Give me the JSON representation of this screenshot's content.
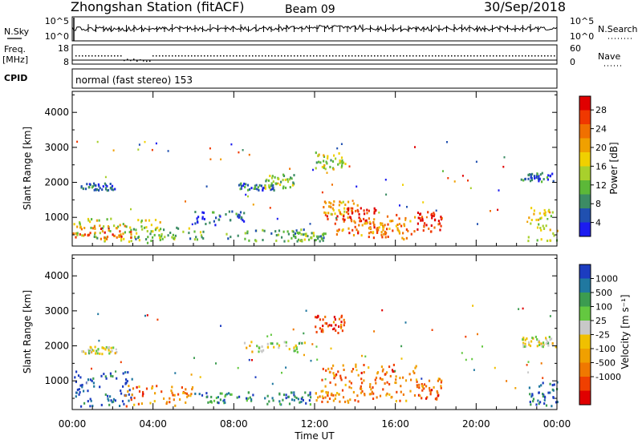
{
  "header": {
    "station": "Zhongshan Station (fitACF)",
    "beam": "Beam 09",
    "date": "30/Sep/2018"
  },
  "nsky_panel": {
    "left_label": "N.Sky",
    "right_label": "N.Search",
    "left_ticks": [
      "10^5",
      "10^0"
    ],
    "right_ticks": [
      "10^5",
      "10^0"
    ]
  },
  "freq_panel": {
    "left_label_line1": "Freq.",
    "left_label_line2": "[MHz]",
    "right_label": "Nave",
    "left_ticks": [
      "18",
      "8"
    ],
    "right_ticks": [
      "60",
      "0"
    ]
  },
  "cpid_panel": {
    "label": "CPID",
    "mode_text": "normal (fast stereo) 153"
  },
  "chart_data": [
    {
      "type": "heatmap",
      "name": "power",
      "ylabel": "Slant Range [km]",
      "y_ticks": [
        "1000",
        "2000",
        "3000",
        "4000"
      ],
      "ylim": [
        180,
        4600
      ],
      "xlim_hours": [
        0,
        24
      ],
      "colorbar_label": "Power [dB]",
      "colorbar_ticks": [
        "4",
        "8",
        "12",
        "16",
        "20",
        "24",
        "28"
      ],
      "colorbar_colors": [
        "#1c1cf0",
        "#2050b0",
        "#3c8c64",
        "#5cb838",
        "#a8d02c",
        "#f0d000",
        "#f0a000",
        "#f07000",
        "#f03800",
        "#e00000"
      ],
      "scatter_regions": [
        {
          "t0": 0.0,
          "t1": 4.5,
          "r0": 300,
          "r1": 1000,
          "level": 0.45
        },
        {
          "t0": 0.0,
          "t1": 3.0,
          "r0": 400,
          "r1": 800,
          "level": 0.8
        },
        {
          "t0": 0.4,
          "t1": 2.2,
          "r0": 1800,
          "r1": 2000,
          "level": 0.15
        },
        {
          "t0": 3.0,
          "t1": 6.5,
          "r0": 300,
          "r1": 800,
          "level": 0.35
        },
        {
          "t0": 6.0,
          "t1": 8.5,
          "r0": 800,
          "r1": 1200,
          "level": 0.15
        },
        {
          "t0": 7.5,
          "t1": 11.5,
          "r0": 350,
          "r1": 700,
          "level": 0.3
        },
        {
          "t0": 8.2,
          "t1": 10.0,
          "r0": 1800,
          "r1": 2000,
          "level": 0.2
        },
        {
          "t0": 9.5,
          "t1": 11.0,
          "r0": 1850,
          "r1": 2250,
          "level": 0.4
        },
        {
          "t0": 11.0,
          "t1": 12.5,
          "r0": 350,
          "r1": 600,
          "level": 0.35
        },
        {
          "t0": 12.3,
          "t1": 14.2,
          "r0": 1100,
          "r1": 1500,
          "level": 0.65
        },
        {
          "t0": 12.5,
          "t1": 15.0,
          "r0": 800,
          "r1": 1300,
          "level": 0.9
        },
        {
          "t0": 13.0,
          "t1": 17.0,
          "r0": 500,
          "r1": 1100,
          "level": 0.75
        },
        {
          "t0": 14.5,
          "t1": 16.7,
          "r0": 400,
          "r1": 900,
          "level": 0.7
        },
        {
          "t0": 17.0,
          "t1": 18.3,
          "r0": 600,
          "r1": 1200,
          "level": 0.9
        },
        {
          "t0": 12.0,
          "t1": 13.5,
          "r0": 2400,
          "r1": 2900,
          "level": 0.45
        },
        {
          "t0": 22.2,
          "t1": 23.8,
          "r0": 2050,
          "r1": 2300,
          "level": 0.15
        },
        {
          "t0": 22.5,
          "t1": 24.0,
          "r0": 300,
          "r1": 1300,
          "level": 0.5
        }
      ]
    },
    {
      "type": "heatmap",
      "name": "velocity",
      "ylabel": "Slant Range [km]",
      "y_ticks": [
        "1000",
        "2000",
        "3000",
        "4000"
      ],
      "ylim": [
        180,
        4600
      ],
      "xlim_hours": [
        0,
        24
      ],
      "x_ticks": [
        "00:00",
        "04:00",
        "08:00",
        "12:00",
        "16:00",
        "20:00",
        "00:00"
      ],
      "xlabel": "Time UT",
      "colorbar_label": "Velocity [m s⁻¹]",
      "colorbar_ticks": [
        "1000",
        "500",
        "100",
        "25",
        "-25",
        "-100",
        "-500",
        "-1000"
      ],
      "colorbar_colors": [
        "#1c3cc0",
        "#2078a0",
        "#3c9c50",
        "#64c840",
        "#c8c8c8",
        "#f0c000",
        "#f0a000",
        "#f07800",
        "#f04000",
        "#e00000"
      ],
      "scatter_regions": [
        {
          "t0": 0.0,
          "t1": 3.0,
          "r0": 300,
          "r1": 1300,
          "level": 0.05
        },
        {
          "t0": 2.5,
          "t1": 6.0,
          "r0": 300,
          "r1": 900,
          "level": 0.75
        },
        {
          "t0": 0.4,
          "t1": 2.2,
          "r0": 1800,
          "r1": 2000,
          "level": 0.45
        },
        {
          "t0": 6.0,
          "t1": 9.0,
          "r0": 400,
          "r1": 700,
          "level": 0.2
        },
        {
          "t0": 8.5,
          "t1": 11.5,
          "r0": 1850,
          "r1": 2150,
          "level": 0.45
        },
        {
          "t0": 9.5,
          "t1": 12.0,
          "r0": 350,
          "r1": 700,
          "level": 0.15
        },
        {
          "t0": 12.3,
          "t1": 17.0,
          "r0": 600,
          "r1": 1500,
          "level": 0.75
        },
        {
          "t0": 12.0,
          "t1": 16.5,
          "r0": 400,
          "r1": 700,
          "level": 0.7
        },
        {
          "t0": 17.0,
          "t1": 18.3,
          "r0": 500,
          "r1": 1100,
          "level": 0.75
        },
        {
          "t0": 12.0,
          "t1": 13.5,
          "r0": 2400,
          "r1": 2900,
          "level": 0.85
        },
        {
          "t0": 22.2,
          "t1": 23.8,
          "r0": 2000,
          "r1": 2300,
          "level": 0.45
        },
        {
          "t0": 22.5,
          "t1": 24.0,
          "r0": 300,
          "r1": 1000,
          "level": 0.1
        }
      ]
    }
  ]
}
